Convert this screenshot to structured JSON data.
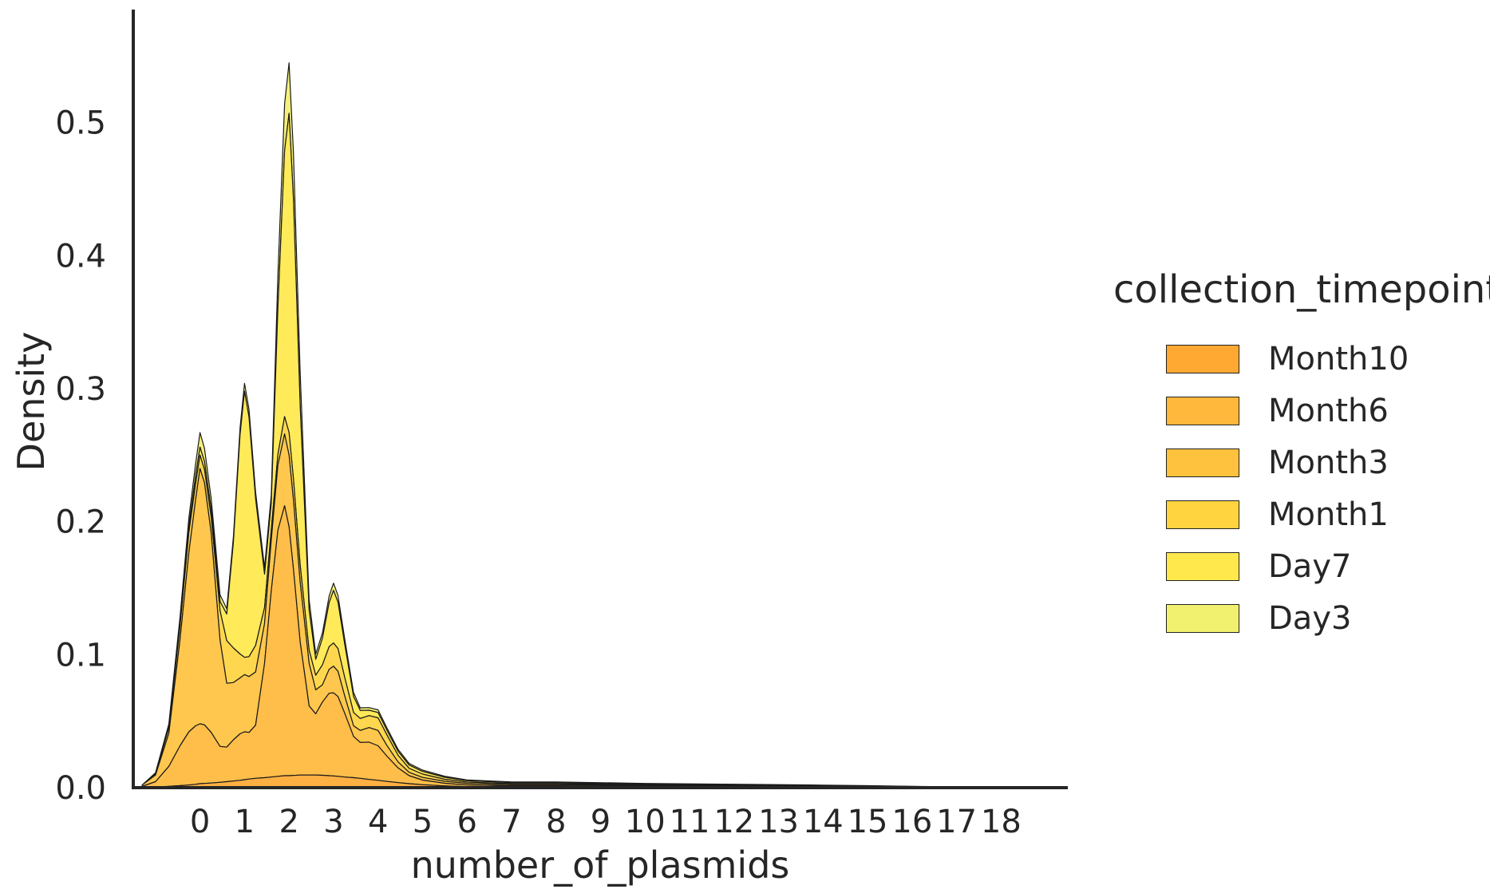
{
  "chart_data": {
    "type": "area",
    "title": "",
    "xlabel": "number_of_plasmids",
    "ylabel": "Density",
    "xlim": [
      -1.5,
      19.5
    ],
    "ylim": [
      0,
      0.585
    ],
    "xticks": [
      0,
      1,
      2,
      3,
      4,
      5,
      6,
      7,
      8,
      9,
      10,
      11,
      12,
      13,
      14,
      15,
      16,
      17,
      18
    ],
    "yticks": [
      0.0,
      0.1,
      0.2,
      0.3,
      0.4,
      0.5
    ],
    "ytick_labels": [
      "0.0",
      "0.1",
      "0.2",
      "0.3",
      "0.4",
      "0.5"
    ],
    "stacked": true,
    "grid": false,
    "legend": {
      "title": "collection_timepoint",
      "position": "right"
    },
    "x": [
      -1.3,
      -1.0,
      -0.7,
      -0.45,
      -0.25,
      -0.1,
      0.0,
      0.1,
      0.25,
      0.45,
      0.6,
      0.75,
      0.9,
      1.0,
      1.1,
      1.25,
      1.45,
      1.6,
      1.75,
      1.9,
      2.0,
      2.1,
      2.25,
      2.45,
      2.6,
      2.75,
      2.9,
      3.0,
      3.1,
      3.25,
      3.45,
      3.6,
      3.8,
      4.0,
      4.2,
      4.45,
      4.7,
      5.0,
      5.5,
      6.0,
      7.0,
      8.0,
      10.0,
      12.0,
      14.0,
      15.0,
      16.0,
      17.0,
      18.0,
      19.0
    ],
    "series": [
      {
        "name": "Month10",
        "color": "#ffa933",
        "values": [
          0.0,
          0.0005,
          0.001,
          0.0015,
          0.002,
          0.0025,
          0.003,
          0.0032,
          0.0035,
          0.004,
          0.0045,
          0.005,
          0.0055,
          0.006,
          0.0065,
          0.007,
          0.0075,
          0.008,
          0.0085,
          0.009,
          0.009,
          0.0092,
          0.0095,
          0.0095,
          0.0095,
          0.0093,
          0.009,
          0.0088,
          0.0085,
          0.008,
          0.0075,
          0.007,
          0.0062,
          0.0055,
          0.0047,
          0.0038,
          0.003,
          0.0022,
          0.0013,
          0.0008,
          0.0006,
          0.0006,
          0.0004,
          0.0003,
          0.0002,
          0.0002,
          0.0001,
          0.0001,
          0.0,
          0.0
        ]
      },
      {
        "name": "Month6",
        "color": "#ffb83b",
        "values": [
          0.001,
          0.004,
          0.015,
          0.03,
          0.04,
          0.044,
          0.045,
          0.044,
          0.038,
          0.027,
          0.026,
          0.031,
          0.035,
          0.036,
          0.035,
          0.04,
          0.086,
          0.14,
          0.185,
          0.203,
          0.187,
          0.155,
          0.1,
          0.052,
          0.046,
          0.055,
          0.062,
          0.0625,
          0.06,
          0.048,
          0.031,
          0.027,
          0.028,
          0.026,
          0.019,
          0.011,
          0.006,
          0.0035,
          0.002,
          0.0012,
          0.0008,
          0.0008,
          0.0006,
          0.0005,
          0.0003,
          0.0002,
          0.0002,
          0.0001,
          0.0,
          0.0
        ]
      },
      {
        "name": "Month3",
        "color": "#ffc23e",
        "values": [
          0.001,
          0.005,
          0.025,
          0.08,
          0.135,
          0.17,
          0.192,
          0.182,
          0.15,
          0.08,
          0.048,
          0.043,
          0.042,
          0.043,
          0.042,
          0.04,
          0.03,
          0.038,
          0.049,
          0.054,
          0.054,
          0.052,
          0.045,
          0.032,
          0.018,
          0.013,
          0.018,
          0.02,
          0.019,
          0.013,
          0.008,
          0.009,
          0.011,
          0.0115,
          0.008,
          0.0045,
          0.0025,
          0.002,
          0.0015,
          0.0012,
          0.0008,
          0.0008,
          0.0006,
          0.0005,
          0.0004,
          0.0003,
          0.0002,
          0.0001,
          0.0,
          0.0
        ]
      },
      {
        "name": "Month1",
        "color": "#ffd43f",
        "values": [
          0.0,
          0.001,
          0.004,
          0.01,
          0.015,
          0.012,
          0.01,
          0.01,
          0.012,
          0.022,
          0.032,
          0.026,
          0.018,
          0.013,
          0.015,
          0.02,
          0.012,
          0.008,
          0.008,
          0.013,
          0.017,
          0.016,
          0.013,
          0.01,
          0.011,
          0.015,
          0.017,
          0.0175,
          0.017,
          0.014,
          0.01,
          0.009,
          0.009,
          0.0095,
          0.008,
          0.005,
          0.003,
          0.0025,
          0.0015,
          0.001,
          0.0008,
          0.0008,
          0.0006,
          0.0005,
          0.0004,
          0.0003,
          0.0002,
          0.0001,
          0.0,
          0.0
        ]
      },
      {
        "name": "Day7",
        "color": "#ffe84c",
        "values": [
          0.0,
          0.0005,
          0.002,
          0.004,
          0.005,
          0.006,
          0.006,
          0.006,
          0.006,
          0.007,
          0.02,
          0.08,
          0.165,
          0.2,
          0.18,
          0.11,
          0.025,
          0.02,
          0.11,
          0.2,
          0.24,
          0.21,
          0.12,
          0.03,
          0.012,
          0.02,
          0.033,
          0.0395,
          0.035,
          0.025,
          0.012,
          0.006,
          0.004,
          0.004,
          0.0035,
          0.003,
          0.0025,
          0.002,
          0.0015,
          0.001,
          0.0008,
          0.0008,
          0.0006,
          0.0005,
          0.0004,
          0.0003,
          0.0002,
          0.0001,
          0.0,
          0.0
        ]
      },
      {
        "name": "Day3",
        "color": "#f2f06f",
        "values": [
          0.0,
          0.0002,
          0.001,
          0.003,
          0.006,
          0.009,
          0.011,
          0.01,
          0.008,
          0.005,
          0.004,
          0.004,
          0.005,
          0.006,
          0.006,
          0.005,
          0.005,
          0.006,
          0.025,
          0.035,
          0.038,
          0.035,
          0.025,
          0.008,
          0.004,
          0.004,
          0.005,
          0.0055,
          0.005,
          0.004,
          0.003,
          0.002,
          0.002,
          0.002,
          0.0018,
          0.0015,
          0.0012,
          0.001,
          0.0008,
          0.0006,
          0.0005,
          0.0005,
          0.0004,
          0.0003,
          0.0002,
          0.0002,
          0.0001,
          0.0001,
          0.0,
          0.0
        ]
      }
    ]
  }
}
